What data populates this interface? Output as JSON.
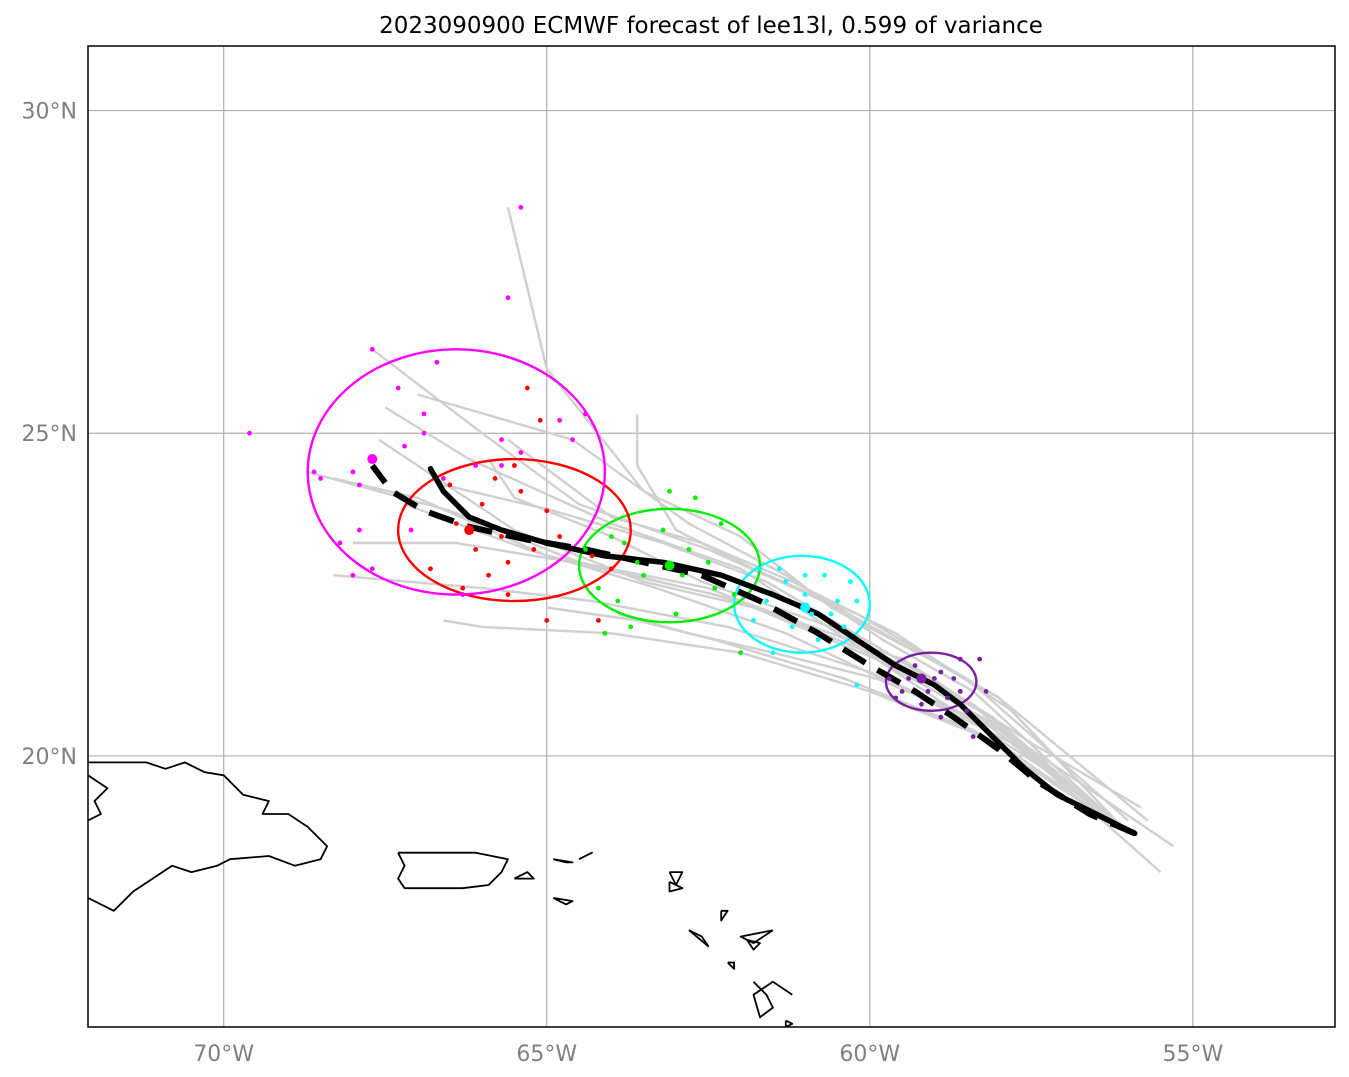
{
  "title": "2023090900 ECMWF forecast of lee13l, 0.599 of variance",
  "map": {
    "lon_range": [
      -72.1,
      -52.8
    ],
    "lat_range": [
      15.8,
      31.0
    ],
    "lon_ticks": [
      {
        "lon": -70,
        "label": "70°W"
      },
      {
        "lon": -65,
        "label": "65°W"
      },
      {
        "lon": -60,
        "label": "60°W"
      },
      {
        "lon": -55,
        "label": "55°W"
      }
    ],
    "lat_ticks": [
      {
        "lat": 30,
        "label": "30°N"
      },
      {
        "lat": 25,
        "label": "25°N"
      },
      {
        "lat": 20,
        "label": "20°N"
      }
    ],
    "colors": {
      "ensemble_track": "#d0d0d0",
      "mean_track": "#000000",
      "grid": "#b0b0b0",
      "coast": "#000000"
    }
  },
  "mean_track": [
    [
      -55.9,
      18.8
    ],
    [
      -56.5,
      19.1
    ],
    [
      -57.1,
      19.4
    ],
    [
      -57.6,
      19.8
    ],
    [
      -58.1,
      20.3
    ],
    [
      -58.6,
      20.8
    ],
    [
      -59.0,
      21.1
    ],
    [
      -59.6,
      21.4
    ],
    [
      -60.2,
      21.8
    ],
    [
      -60.8,
      22.2
    ],
    [
      -61.5,
      22.5
    ],
    [
      -62.3,
      22.8
    ],
    [
      -63.2,
      23.0
    ],
    [
      -64.1,
      23.1
    ],
    [
      -65.0,
      23.3
    ],
    [
      -65.7,
      23.5
    ],
    [
      -66.2,
      23.7
    ],
    [
      -66.6,
      24.1
    ],
    [
      -66.8,
      24.45
    ]
  ],
  "alt_track": [
    [
      -55.9,
      18.8
    ],
    [
      -56.6,
      19.1
    ],
    [
      -57.4,
      19.6
    ],
    [
      -58.0,
      20.1
    ],
    [
      -58.7,
      20.6
    ],
    [
      -59.3,
      21.0
    ],
    [
      -60.0,
      21.4
    ],
    [
      -60.8,
      21.9
    ],
    [
      -61.7,
      22.4
    ],
    [
      -62.6,
      22.8
    ],
    [
      -63.5,
      23.0
    ],
    [
      -64.4,
      23.2
    ],
    [
      -65.3,
      23.35
    ],
    [
      -66.2,
      23.55
    ],
    [
      -66.9,
      23.8
    ],
    [
      -67.4,
      24.1
    ],
    [
      -67.7,
      24.5
    ]
  ],
  "forecast_positions": [
    {
      "color": "#7b1fa2",
      "lon": -59.2,
      "lat": 21.2,
      "ellipse": {
        "lon": -59.05,
        "lat": 21.15,
        "rx_deg": 0.7,
        "ry_deg": 0.45
      },
      "points": [
        [
          -58.6,
          21.5
        ],
        [
          -58.3,
          21.5
        ],
        [
          -58.9,
          21.3
        ],
        [
          -59.5,
          21.0
        ],
        [
          -59.7,
          21.2
        ],
        [
          -58.8,
          20.9
        ],
        [
          -58.5,
          20.7
        ],
        [
          -58.9,
          20.6
        ],
        [
          -59.3,
          21.4
        ],
        [
          -59.0,
          21.2
        ],
        [
          -58.2,
          21.0
        ],
        [
          -58.4,
          20.3
        ],
        [
          -59.2,
          20.8
        ],
        [
          -59.6,
          20.9
        ],
        [
          -58.7,
          21.2
        ],
        [
          -59.1,
          21.0
        ],
        [
          -58.6,
          21.0
        ],
        [
          -59.4,
          21.2
        ]
      ]
    },
    {
      "color": "#00ffff",
      "lon": -61.0,
      "lat": 22.3,
      "ellipse": {
        "lon": -61.05,
        "lat": 22.35,
        "rx_deg": 1.05,
        "ry_deg": 0.75
      },
      "points": [
        [
          -61.4,
          22.9
        ],
        [
          -60.7,
          22.8
        ],
        [
          -60.3,
          22.7
        ],
        [
          -61.6,
          22.4
        ],
        [
          -61.0,
          22.5
        ],
        [
          -60.6,
          22.2
        ],
        [
          -60.4,
          22.0
        ],
        [
          -61.2,
          22.0
        ],
        [
          -61.8,
          22.1
        ],
        [
          -60.8,
          21.8
        ],
        [
          -61.5,
          21.6
        ],
        [
          -60.2,
          21.1
        ],
        [
          -61.0,
          22.8
        ],
        [
          -60.9,
          22.2
        ],
        [
          -60.5,
          22.4
        ],
        [
          -61.3,
          22.7
        ],
        [
          -61.7,
          22.9
        ],
        [
          -60.2,
          22.4
        ]
      ]
    },
    {
      "color": "#00ee00",
      "lon": -63.1,
      "lat": 22.95,
      "ellipse": {
        "lon": -63.1,
        "lat": 22.95,
        "rx_deg": 1.4,
        "ry_deg": 0.88
      },
      "points": [
        [
          -63.8,
          23.3
        ],
        [
          -63.2,
          23.5
        ],
        [
          -62.8,
          23.2
        ],
        [
          -62.5,
          23.0
        ],
        [
          -63.5,
          22.8
        ],
        [
          -64.2,
          22.6
        ],
        [
          -63.9,
          22.4
        ],
        [
          -63.0,
          22.2
        ],
        [
          -62.4,
          22.6
        ],
        [
          -64.4,
          23.2
        ],
        [
          -62.1,
          22.5
        ],
        [
          -62.3,
          23.6
        ],
        [
          -63.1,
          24.1
        ],
        [
          -62.7,
          24.0
        ],
        [
          -63.6,
          23.0
        ],
        [
          -62.0,
          21.6
        ],
        [
          -64.1,
          21.9
        ],
        [
          -63.7,
          22.0
        ],
        [
          -64.0,
          23.4
        ],
        [
          -62.9,
          22.8
        ]
      ]
    },
    {
      "color": "#ff0000",
      "lon": -66.2,
      "lat": 23.5,
      "ellipse": {
        "lon": -65.5,
        "lat": 23.5,
        "rx_deg": 1.8,
        "ry_deg": 1.1
      },
      "points": [
        [
          -65.8,
          24.3
        ],
        [
          -65.4,
          24.1
        ],
        [
          -66.0,
          23.9
        ],
        [
          -65.0,
          23.8
        ],
        [
          -65.2,
          23.2
        ],
        [
          -64.8,
          23.4
        ],
        [
          -66.4,
          23.6
        ],
        [
          -65.6,
          23.0
        ],
        [
          -65.9,
          22.8
        ],
        [
          -66.1,
          23.2
        ],
        [
          -64.3,
          23.1
        ],
        [
          -64.0,
          22.9
        ],
        [
          -64.2,
          22.1
        ],
        [
          -65.0,
          22.1
        ],
        [
          -65.6,
          22.5
        ],
        [
          -66.3,
          22.6
        ],
        [
          -66.8,
          22.9
        ],
        [
          -65.5,
          24.5
        ],
        [
          -65.1,
          25.2
        ],
        [
          -65.3,
          25.7
        ],
        [
          -66.5,
          24.2
        ],
        [
          -65.7,
          23.4
        ]
      ]
    },
    {
      "color": "#ff00ff",
      "lon": -67.7,
      "lat": 24.6,
      "ellipse": {
        "lon": -66.4,
        "lat": 24.4,
        "rx_deg": 2.3,
        "ry_deg": 1.9
      },
      "points": [
        [
          -69.6,
          25.0
        ],
        [
          -68.6,
          24.4
        ],
        [
          -68.5,
          24.3
        ],
        [
          -68.0,
          24.4
        ],
        [
          -67.9,
          24.2
        ],
        [
          -67.2,
          24.8
        ],
        [
          -66.9,
          25.0
        ],
        [
          -66.6,
          24.3
        ],
        [
          -66.9,
          25.3
        ],
        [
          -67.7,
          26.3
        ],
        [
          -67.3,
          25.7
        ],
        [
          -66.7,
          26.1
        ],
        [
          -65.4,
          28.5
        ],
        [
          -65.6,
          27.1
        ],
        [
          -64.4,
          25.3
        ],
        [
          -64.8,
          25.2
        ],
        [
          -64.6,
          24.9
        ],
        [
          -65.4,
          24.7
        ],
        [
          -65.7,
          24.5
        ],
        [
          -67.1,
          23.5
        ],
        [
          -67.9,
          23.5
        ],
        [
          -68.2,
          23.3
        ],
        [
          -68.0,
          22.8
        ],
        [
          -67.7,
          22.9
        ],
        [
          -66.3,
          22.5
        ],
        [
          -65.7,
          24.9
        ],
        [
          -66.1,
          24.5
        ]
      ]
    }
  ],
  "ensemble_tracks": [
    [
      [
        -55.8,
        19.2
      ],
      [
        -57.5,
        20.2
      ],
      [
        -59.5,
        21.5
      ],
      [
        -62.0,
        22.4
      ],
      [
        -64.5,
        23.0
      ],
      [
        -66.5,
        23.8
      ],
      [
        -68.7,
        24.4
      ]
    ],
    [
      [
        -55.3,
        18.6
      ],
      [
        -57.8,
        20.3
      ],
      [
        -60.0,
        21.6
      ],
      [
        -62.5,
        22.6
      ],
      [
        -65.0,
        23.1
      ],
      [
        -67.0,
        24.0
      ],
      [
        -68.3,
        24.3
      ]
    ],
    [
      [
        -55.5,
        18.2
      ],
      [
        -57.3,
        19.8
      ],
      [
        -59.6,
        21.3
      ],
      [
        -62.0,
        22.9
      ],
      [
        -64.0,
        23.6
      ],
      [
        -66.2,
        24.6
      ],
      [
        -67.5,
        25.4
      ]
    ],
    [
      [
        -55.7,
        19.0
      ],
      [
        -58.0,
        20.9
      ],
      [
        -60.5,
        22.3
      ],
      [
        -62.5,
        23.2
      ],
      [
        -64.5,
        23.9
      ],
      [
        -66.0,
        25.0
      ],
      [
        -67.7,
        26.3
      ]
    ],
    [
      [
        -56.0,
        19.0
      ],
      [
        -58.5,
        21.2
      ],
      [
        -60.6,
        22.3
      ],
      [
        -62.0,
        23.4
      ],
      [
        -63.5,
        24.1
      ],
      [
        -65.0,
        26.0
      ],
      [
        -65.6,
        28.5
      ]
    ],
    [
      [
        -56.0,
        18.8
      ],
      [
        -58.2,
        20.5
      ],
      [
        -60.0,
        21.3
      ],
      [
        -62.2,
        22.0
      ],
      [
        -64.3,
        22.4
      ],
      [
        -66.0,
        22.6
      ],
      [
        -68.3,
        22.8
      ]
    ],
    [
      [
        -56.0,
        18.8
      ],
      [
        -58.0,
        20.2
      ],
      [
        -60.0,
        21.0
      ],
      [
        -62.0,
        21.6
      ],
      [
        -64.0,
        21.9
      ],
      [
        -66.0,
        22.0
      ],
      [
        -66.6,
        22.1
      ]
    ],
    [
      [
        -56.0,
        18.8
      ],
      [
        -58.4,
        20.4
      ],
      [
        -60.4,
        21.2
      ],
      [
        -62.4,
        21.8
      ],
      [
        -63.6,
        22.1
      ],
      [
        -65.0,
        22.3
      ]
    ],
    [
      [
        -56.0,
        18.8
      ],
      [
        -58.4,
        21.0
      ],
      [
        -59.8,
        21.8
      ],
      [
        -61.3,
        22.8
      ],
      [
        -62.8,
        23.6
      ],
      [
        -64.6,
        24.9
      ],
      [
        -67.0,
        25.6
      ]
    ],
    [
      [
        -56.0,
        18.8
      ],
      [
        -58.0,
        20.9
      ],
      [
        -60.2,
        22.2
      ],
      [
        -61.8,
        22.9
      ],
      [
        -63.0,
        23.5
      ],
      [
        -63.6,
        24.5
      ],
      [
        -63.6,
        25.3
      ]
    ],
    [
      [
        -56.0,
        18.8
      ],
      [
        -58.3,
        20.7
      ],
      [
        -60.3,
        21.8
      ],
      [
        -62.4,
        22.5
      ],
      [
        -64.6,
        23.0
      ],
      [
        -66.4,
        23.3
      ],
      [
        -68.0,
        23.3
      ]
    ],
    [
      [
        -56.0,
        18.8
      ],
      [
        -58.1,
        20.6
      ],
      [
        -59.9,
        21.7
      ],
      [
        -61.6,
        22.7
      ],
      [
        -63.2,
        23.3
      ],
      [
        -64.9,
        23.8
      ],
      [
        -66.6,
        24.2
      ]
    ],
    [
      [
        -56.0,
        18.8
      ],
      [
        -57.6,
        20.1
      ],
      [
        -59.4,
        21.0
      ],
      [
        -61.3,
        21.9
      ],
      [
        -63.3,
        22.6
      ],
      [
        -65.3,
        23.2
      ],
      [
        -67.2,
        23.9
      ]
    ],
    [
      [
        -56.0,
        18.8
      ],
      [
        -57.9,
        20.4
      ],
      [
        -59.9,
        21.5
      ],
      [
        -61.8,
        22.3
      ],
      [
        -63.5,
        22.7
      ],
      [
        -65.5,
        23.5
      ],
      [
        -67.6,
        24.9
      ]
    ],
    [
      [
        -56.0,
        18.8
      ],
      [
        -58.4,
        20.8
      ],
      [
        -60.6,
        22.0
      ],
      [
        -62.6,
        22.7
      ],
      [
        -64.0,
        23.4
      ],
      [
        -65.5,
        24.0
      ],
      [
        -65.9,
        24.6
      ]
    ],
    [
      [
        -56.0,
        18.8
      ],
      [
        -58.0,
        20.4
      ],
      [
        -59.9,
        21.2
      ],
      [
        -61.5,
        21.6
      ],
      [
        -62.8,
        21.9
      ],
      [
        -63.9,
        22.2
      ]
    ],
    [
      [
        -56.0,
        18.8
      ],
      [
        -57.8,
        20.7
      ],
      [
        -59.6,
        21.9
      ],
      [
        -61.2,
        22.7
      ],
      [
        -62.6,
        23.3
      ],
      [
        -64.0,
        23.7
      ],
      [
        -65.6,
        24.9
      ]
    ]
  ],
  "coastlines": [
    [
      [
        -72.1,
        19.9
      ],
      [
        -71.6,
        19.9
      ],
      [
        -71.2,
        19.9
      ],
      [
        -70.9,
        19.8
      ],
      [
        -70.6,
        19.9
      ],
      [
        -70.3,
        19.75
      ],
      [
        -70.0,
        19.7
      ],
      [
        -69.8,
        19.5
      ],
      [
        -69.7,
        19.4
      ],
      [
        -69.3,
        19.3
      ],
      [
        -69.4,
        19.1
      ],
      [
        -69.0,
        19.1
      ],
      [
        -68.7,
        18.9
      ],
      [
        -68.4,
        18.6
      ],
      [
        -68.5,
        18.4
      ],
      [
        -68.9,
        18.3
      ],
      [
        -69.3,
        18.45
      ],
      [
        -69.9,
        18.4
      ],
      [
        -70.1,
        18.3
      ],
      [
        -70.5,
        18.2
      ],
      [
        -70.8,
        18.3
      ],
      [
        -71.1,
        18.1
      ],
      [
        -71.4,
        17.9
      ],
      [
        -71.6,
        17.7
      ],
      [
        -71.7,
        17.6
      ],
      [
        -72.1,
        17.8
      ]
    ],
    [
      [
        -72.1,
        19.0
      ],
      [
        -71.9,
        19.1
      ],
      [
        -72.0,
        19.3
      ],
      [
        -71.8,
        19.5
      ],
      [
        -72.1,
        19.7
      ]
    ],
    [
      [
        -67.3,
        18.5
      ],
      [
        -66.7,
        18.5
      ],
      [
        -66.1,
        18.5
      ],
      [
        -65.6,
        18.4
      ],
      [
        -65.7,
        18.2
      ],
      [
        -65.9,
        18.0
      ],
      [
        -66.3,
        17.95
      ],
      [
        -66.9,
        17.95
      ],
      [
        -67.2,
        17.95
      ],
      [
        -67.3,
        18.1
      ],
      [
        -67.2,
        18.3
      ],
      [
        -67.3,
        18.5
      ]
    ],
    [
      [
        -65.5,
        18.1
      ],
      [
        -65.2,
        18.1
      ],
      [
        -65.3,
        18.2
      ],
      [
        -65.5,
        18.1
      ]
    ],
    [
      [
        -64.9,
        18.4
      ],
      [
        -64.7,
        18.35
      ],
      [
        -64.6,
        18.35
      ],
      [
        -64.9,
        18.4
      ]
    ],
    [
      [
        -64.5,
        18.4
      ],
      [
        -64.3,
        18.5
      ],
      [
        -64.4,
        18.45
      ],
      [
        -64.5,
        18.4
      ]
    ],
    [
      [
        -64.9,
        17.8
      ],
      [
        -64.6,
        17.75
      ],
      [
        -64.7,
        17.7
      ],
      [
        -64.9,
        17.8
      ]
    ],
    [
      [
        -63.1,
        18.2
      ],
      [
        -62.9,
        18.2
      ],
      [
        -63.0,
        18.0
      ],
      [
        -63.1,
        18.2
      ]
    ],
    [
      [
        -63.1,
        18.05
      ],
      [
        -62.9,
        17.95
      ],
      [
        -63.1,
        17.9
      ],
      [
        -63.1,
        18.05
      ]
    ],
    [
      [
        -62.3,
        17.6
      ],
      [
        -62.2,
        17.6
      ],
      [
        -62.3,
        17.45
      ],
      [
        -62.3,
        17.6
      ]
    ],
    [
      [
        -61.9,
        17.15
      ],
      [
        -61.7,
        17.1
      ],
      [
        -61.8,
        17.0
      ],
      [
        -61.9,
        17.15
      ]
    ],
    [
      [
        -62.8,
        17.3
      ],
      [
        -62.6,
        17.2
      ],
      [
        -62.5,
        17.05
      ],
      [
        -62.8,
        17.3
      ]
    ],
    [
      [
        -62.2,
        16.8
      ],
      [
        -62.1,
        16.8
      ],
      [
        -62.1,
        16.7
      ],
      [
        -62.2,
        16.8
      ]
    ],
    [
      [
        -61.8,
        16.5
      ],
      [
        -61.6,
        16.3
      ],
      [
        -61.5,
        16.1
      ],
      [
        -61.7,
        15.95
      ],
      [
        -61.8,
        16.3
      ],
      [
        -61.5,
        16.5
      ],
      [
        -61.2,
        16.3
      ]
    ],
    [
      [
        -61.3,
        15.9
      ],
      [
        -61.2,
        15.85
      ],
      [
        -61.3,
        15.8
      ],
      [
        -61.3,
        15.9
      ]
    ],
    [
      [
        -61.5,
        17.3
      ],
      [
        -61.8,
        17.1
      ],
      [
        -62.0,
        17.2
      ],
      [
        -61.5,
        17.3
      ]
    ]
  ]
}
